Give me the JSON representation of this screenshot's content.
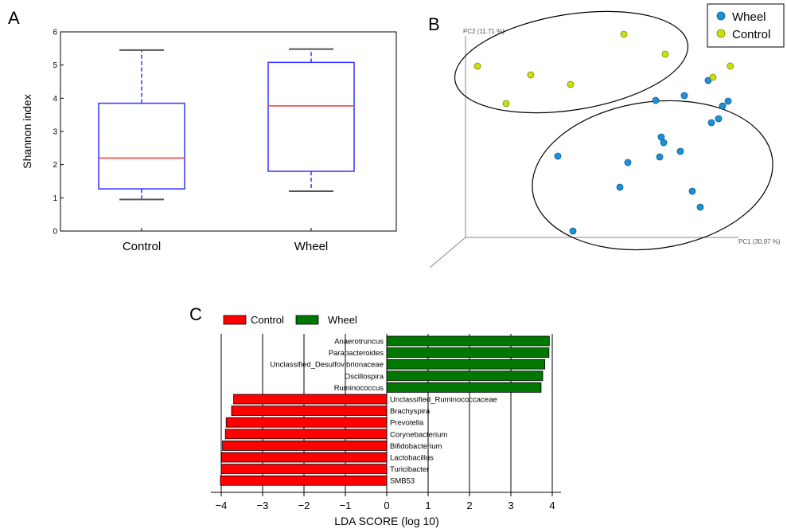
{
  "panels": {
    "a": "A",
    "b": "B",
    "c": "C"
  },
  "chart_data": [
    {
      "panel": "A",
      "type": "box",
      "ylabel": "Shannon index",
      "ylim": [
        0,
        6
      ],
      "yticks": [
        0,
        1,
        2,
        3,
        4,
        5,
        6
      ],
      "categories": [
        "Control",
        "Wheel"
      ],
      "boxes": [
        {
          "name": "Control",
          "whisker_low": 0.95,
          "q1": 1.27,
          "median": 2.2,
          "q3": 3.85,
          "whisker_high": 5.45
        },
        {
          "name": "Wheel",
          "whisker_low": 1.2,
          "q1": 1.8,
          "median": 3.77,
          "q3": 5.08,
          "whisker_high": 5.48
        }
      ],
      "colors": {
        "box": "#3333ff",
        "median": "#ff3333",
        "whisker": "#3333ff",
        "cap": "#555555"
      }
    },
    {
      "panel": "B",
      "type": "scatter",
      "xlabel": "PC1 (30.97 %)",
      "ylabel": "PC2 (11.71 %)",
      "xlim": [
        0,
        100
      ],
      "ylim": [
        0,
        100
      ],
      "series": [
        {
          "name": "Wheel",
          "color": "#1e90d8",
          "points": [
            [
              20,
              3
            ],
            [
              19,
              40
            ],
            [
              33,
              26
            ],
            [
              36,
              36
            ],
            [
              40,
              64
            ],
            [
              40,
              39
            ],
            [
              43,
              44
            ],
            [
              45,
              39
            ],
            [
              45,
              46
            ],
            [
              51,
              41
            ],
            [
              50,
              47
            ],
            [
              51,
              44
            ],
            [
              58,
              42
            ],
            [
              51,
              69
            ],
            [
              49,
              68
            ],
            [
              51,
              72
            ],
            [
              52,
              76
            ]
          ]
        },
        {
          "name": "Control",
          "color": "#c8e010",
          "points": [
            [
              5,
              82
            ],
            [
              17,
              80
            ],
            [
              25,
              73
            ],
            [
              42,
              86
            ],
            [
              63,
              76
            ],
            [
              64,
              97
            ],
            [
              77,
              91
            ],
            [
              97,
              85
            ]
          ]
        }
      ]
    },
    {
      "panel": "C",
      "type": "bar",
      "orientation": "horizontal",
      "xlabel": "LDA SCORE (log 10)",
      "xlim": [
        -4.2,
        4.2
      ],
      "xticks": [
        -4,
        -3,
        -2,
        -1,
        0,
        1,
        2,
        3,
        4
      ],
      "series": [
        {
          "name": "Control",
          "color": "#ff0000"
        },
        {
          "name": "Wheel",
          "color": "#007700"
        }
      ],
      "bars": [
        {
          "taxon": "Anaerotruncus",
          "group": "Wheel",
          "value": 3.93
        },
        {
          "taxon": "Parabacteroides",
          "group": "Wheel",
          "value": 3.92
        },
        {
          "taxon": "Unclassified_Desulfovibrionaceae",
          "group": "Wheel",
          "value": 3.82
        },
        {
          "taxon": "Oscillospira",
          "group": "Wheel",
          "value": 3.77
        },
        {
          "taxon": "Ruminococcus",
          "group": "Wheel",
          "value": 3.73
        },
        {
          "taxon": "Unclassified_Ruminococcaceae",
          "group": "Control",
          "value": -3.7
        },
        {
          "taxon": "Brachyspira",
          "group": "Control",
          "value": -3.75
        },
        {
          "taxon": "Prevotella",
          "group": "Control",
          "value": -3.88
        },
        {
          "taxon": "Corynebacterium",
          "group": "Control",
          "value": -3.9
        },
        {
          "taxon": "Bifidobacterium",
          "group": "Control",
          "value": -3.97
        },
        {
          "taxon": "Lactobacillus",
          "group": "Control",
          "value": -3.99
        },
        {
          "taxon": "Turicibacter",
          "group": "Control",
          "value": -4.0
        },
        {
          "taxon": "SMB53",
          "group": "Control",
          "value": -4.02
        }
      ]
    }
  ]
}
